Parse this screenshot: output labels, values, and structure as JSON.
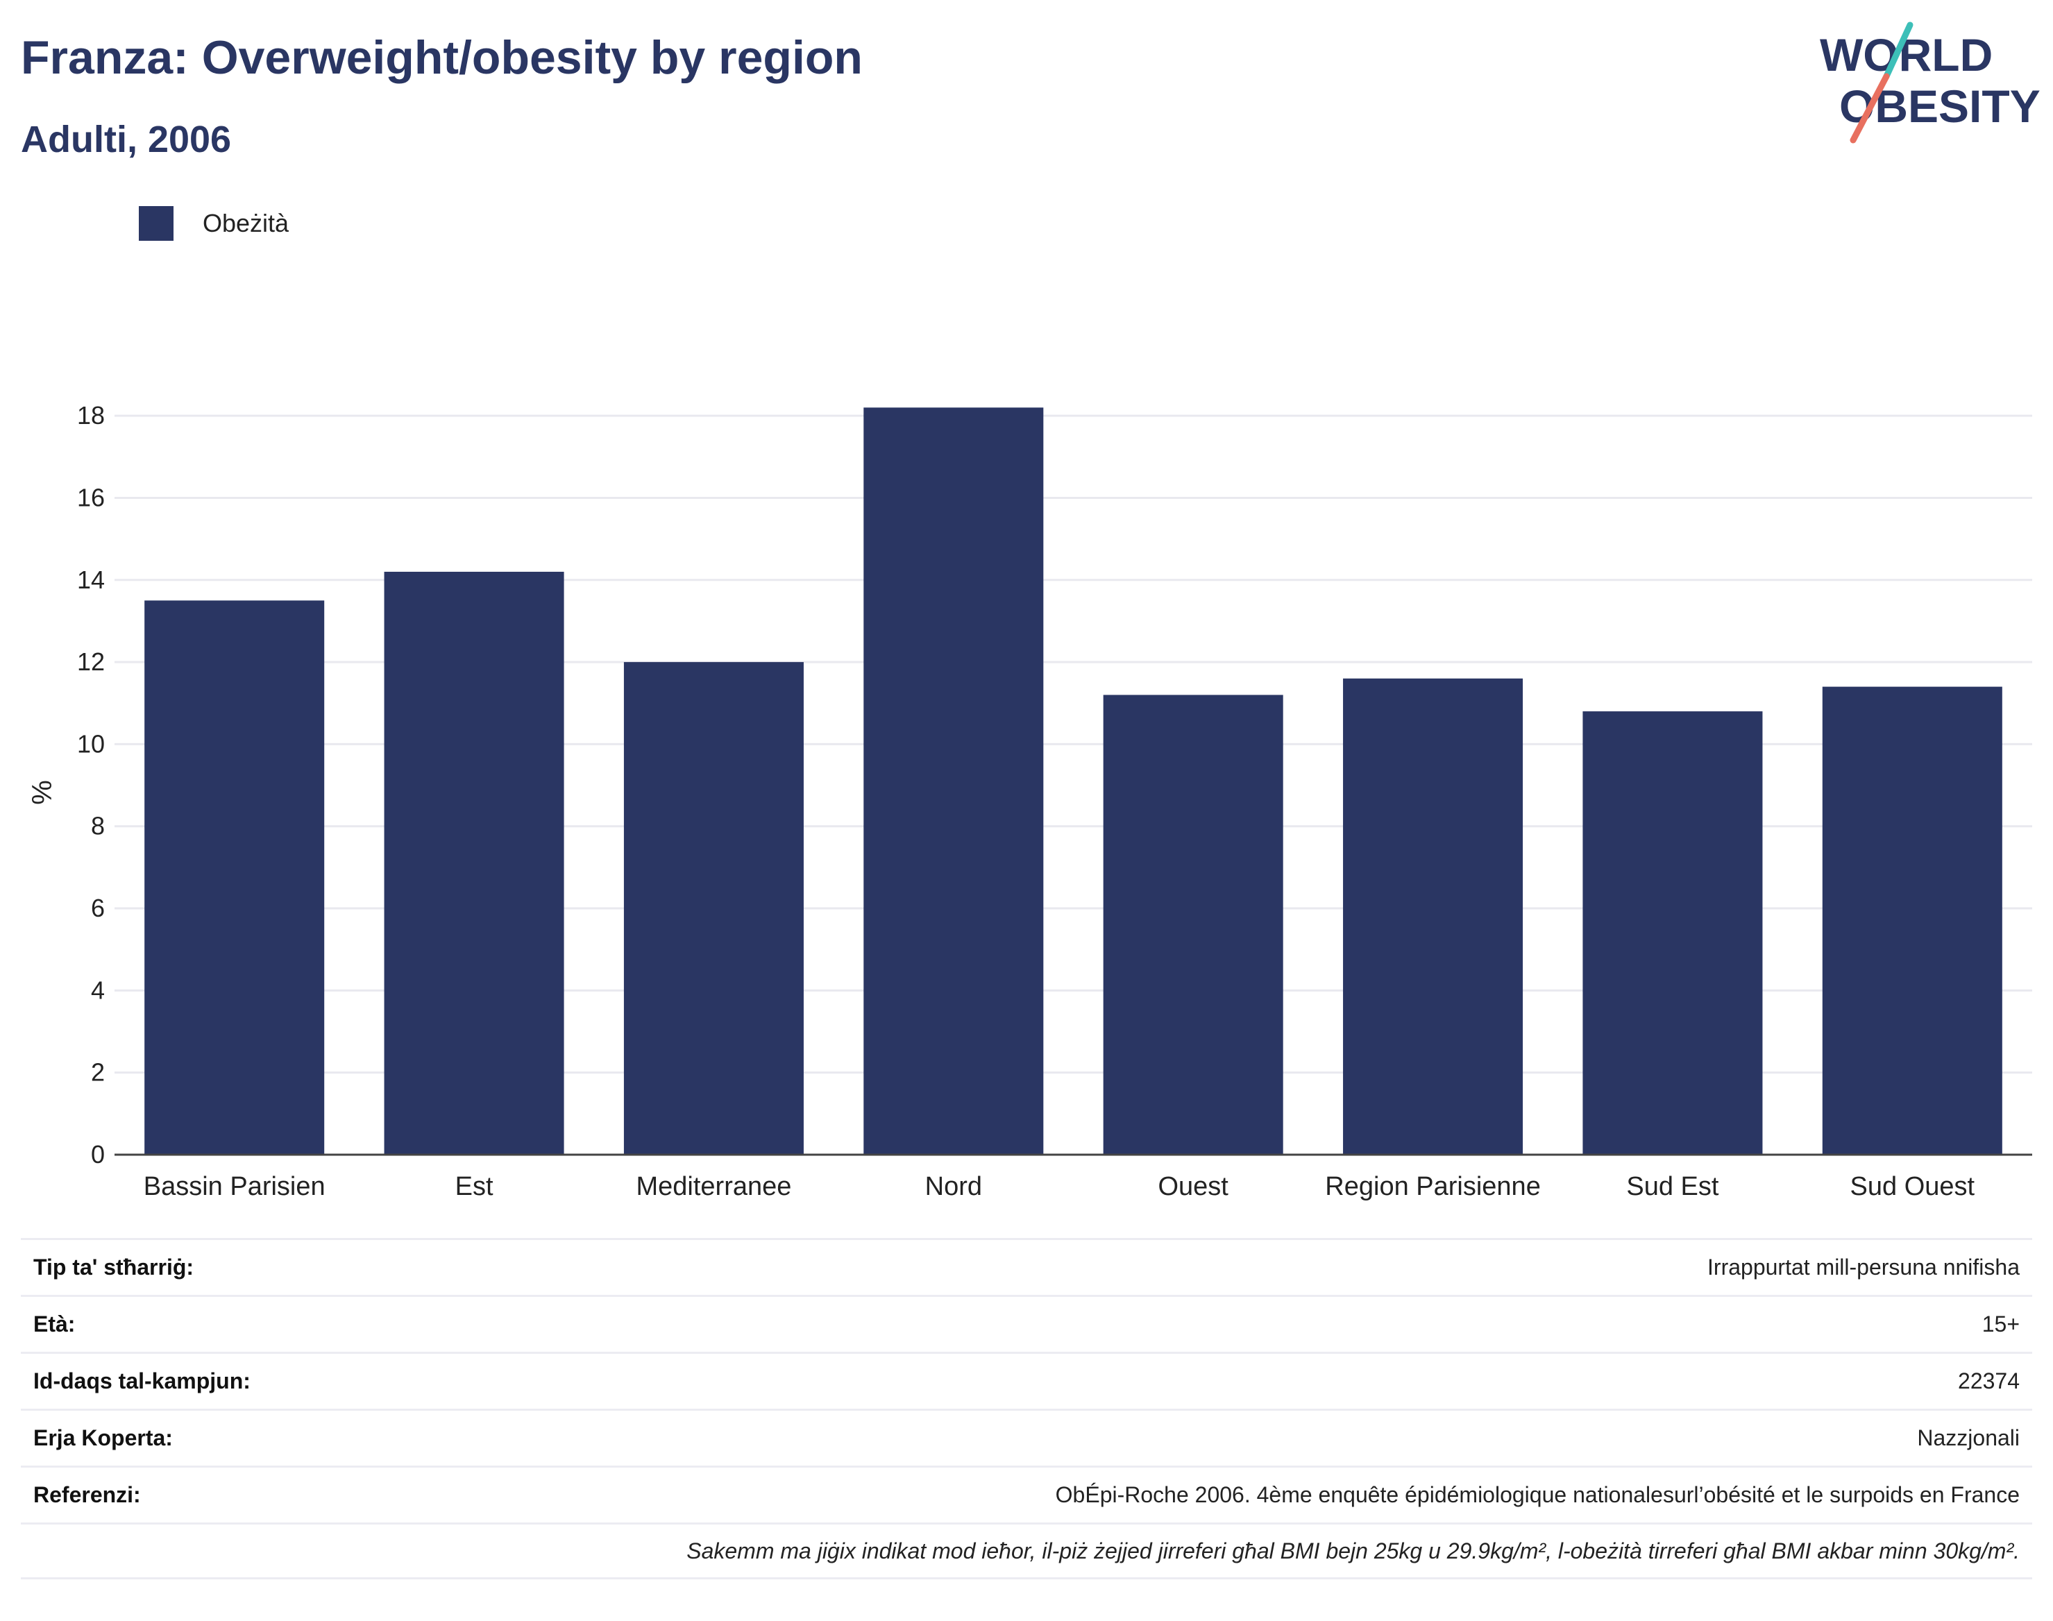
{
  "header": {
    "title": "Franza: Overweight/obesity by region",
    "subtitle": "Adulti, 2006"
  },
  "logo": {
    "line1": "WORLD",
    "line2": "OBESITY",
    "colors": {
      "text": "#2a3663",
      "slash_top": "#3dbfb8",
      "slash_bottom": "#e8705f"
    }
  },
  "chart_data": {
    "type": "bar",
    "title": "Franza: Overweight/obesity by region",
    "subtitle": "Adulti, 2006",
    "categories": [
      "Bassin Parisien",
      "Est",
      "Mediterranee",
      "Nord",
      "Ouest",
      "Region Parisienne",
      "Sud Est",
      "Sud Ouest"
    ],
    "series": [
      {
        "name": "Obeżità",
        "color": "#2a3663",
        "values": [
          13.5,
          14.2,
          12.0,
          18.2,
          11.2,
          11.6,
          10.8,
          11.4
        ]
      }
    ],
    "ylabel": "%",
    "xlabel": "",
    "ylim": [
      0,
      19
    ],
    "yticks": [
      0,
      2,
      4,
      6,
      8,
      10,
      12,
      14,
      16,
      18
    ],
    "grid": true,
    "legend_position": "top-left"
  },
  "info": {
    "rows": [
      {
        "label": "Tip ta' stħarriġ:",
        "value": "Irrappurtat mill-persuna nnifisha"
      },
      {
        "label": "Età:",
        "value": "15+"
      },
      {
        "label": "Id-daqs tal-kampjun:",
        "value": "22374"
      },
      {
        "label": "Erja Koperta:",
        "value": "Nazzjonali"
      },
      {
        "label": "Referenzi:",
        "value": "ObÉpi-Roche 2006. 4ème enquête épidémiologique nationalesurl’obésité et le surpoids en France"
      }
    ],
    "note": "Sakemm ma jiġix indikat mod ieħor, il-piż żejjed jirreferi għal BMI bejn 25kg u 29.9kg/m², l-obeżità tirreferi għal BMI akbar minn 30kg/m²."
  }
}
